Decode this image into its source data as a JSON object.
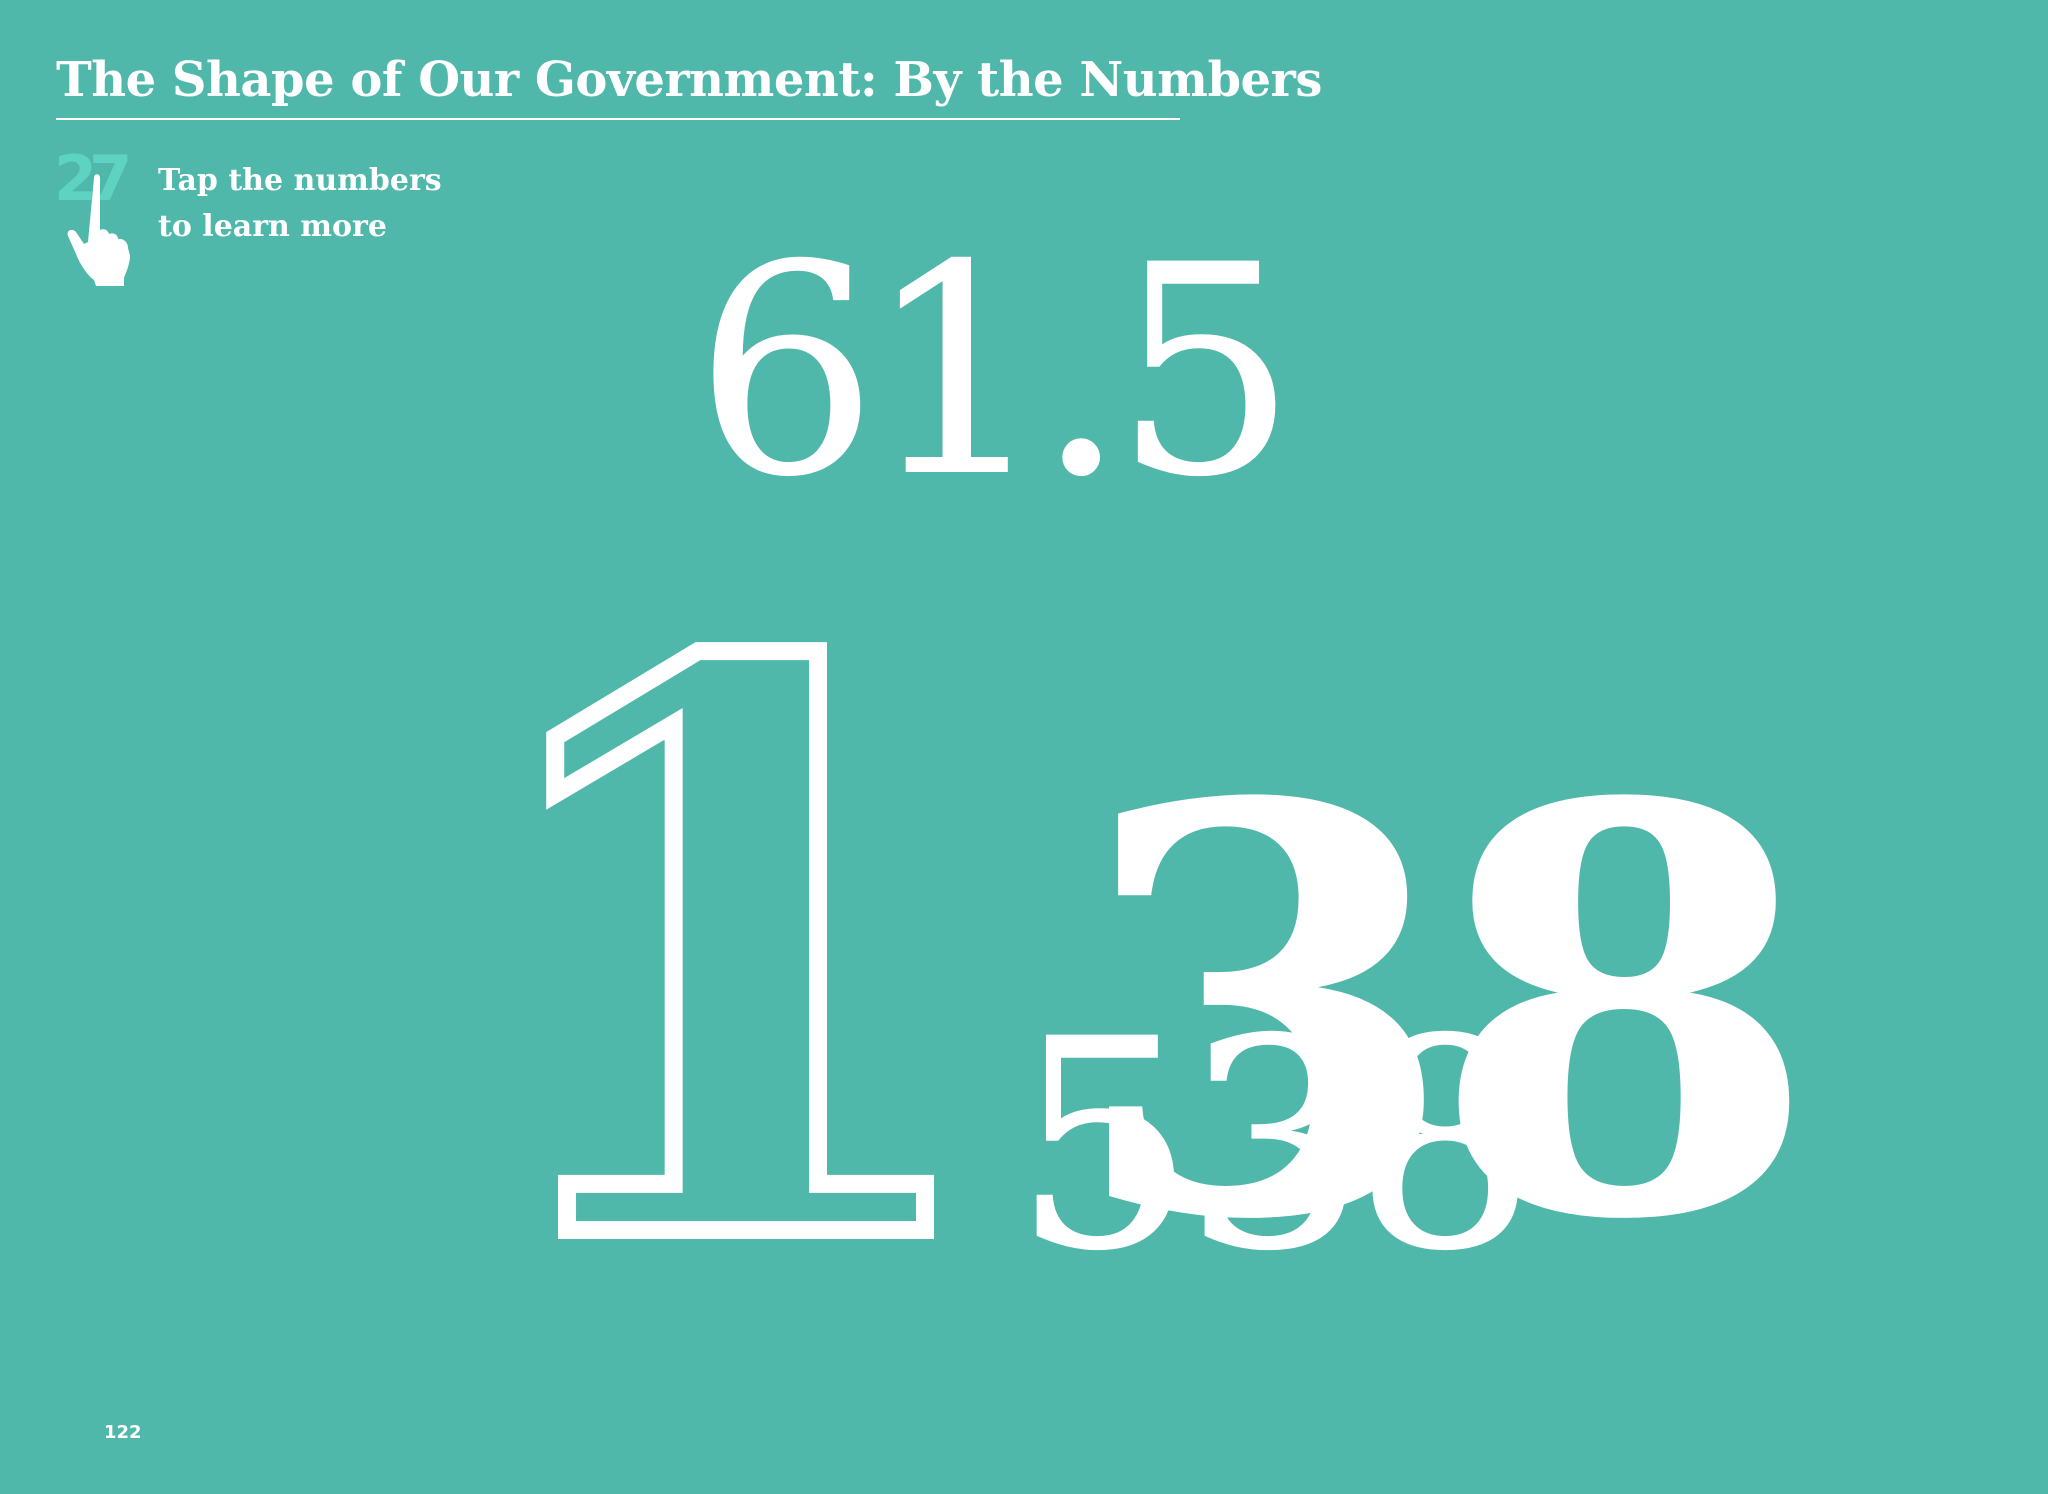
{
  "page": {
    "title": "The Shape of Our Government: By the Numbers",
    "page_number": "122",
    "background_color": "#4fb8aa",
    "accent_color": "#5fd3c1"
  },
  "hint": {
    "icon": "tap-finger-icon",
    "icon_number": "27",
    "line1": "Tap the numbers",
    "line2": "to learn more"
  },
  "numbers": {
    "n1": "61.5",
    "n2_one": "1",
    "n2_rest": "38",
    "n3": "538"
  }
}
